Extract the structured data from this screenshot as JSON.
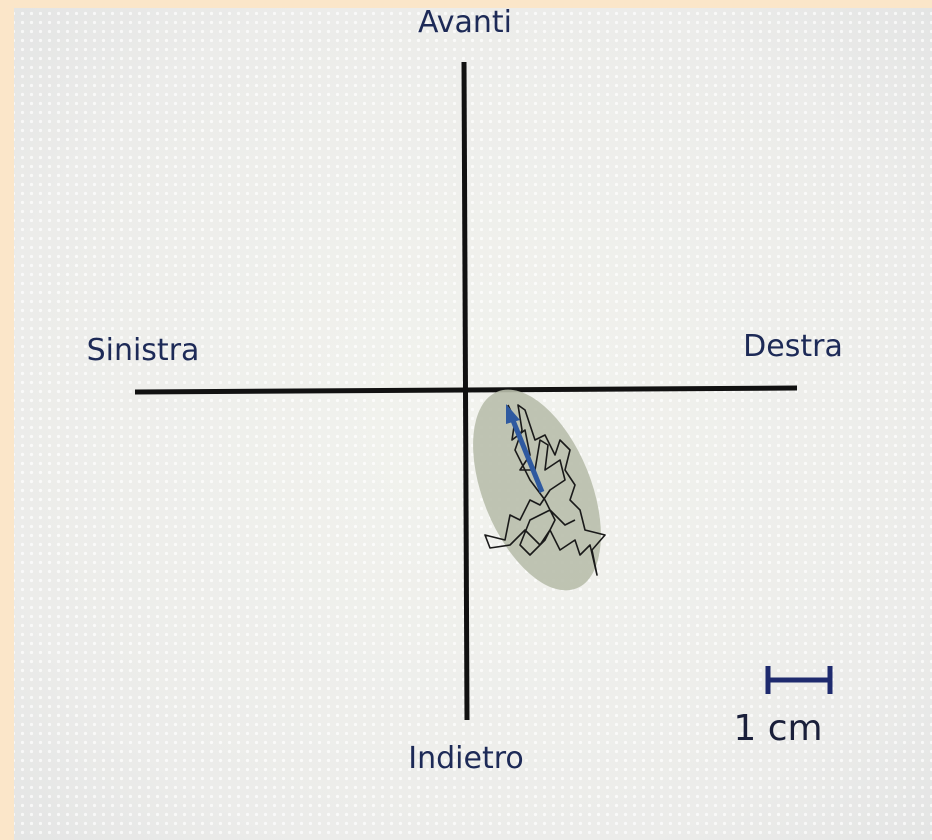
{
  "labels": {
    "top": "Avanti",
    "left": "Sinistra",
    "right": "Destra",
    "bottom": "Indietro"
  },
  "scale_bar": {
    "label": "1 cm"
  }
}
